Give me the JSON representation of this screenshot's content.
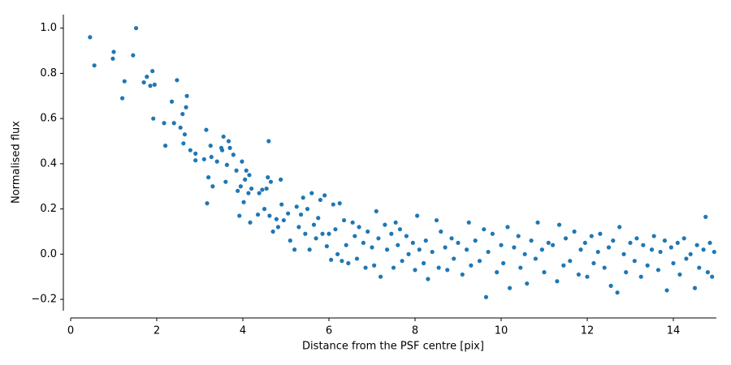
{
  "chart_data": {
    "type": "scatter",
    "xlabel": "Distance from the PSF centre [pix]",
    "ylabel": "Normalised flux",
    "xlim": [
      0,
      15
    ],
    "ylim": [
      -0.25,
      1.06
    ],
    "xticks": [
      0,
      2,
      4,
      6,
      8,
      10,
      12,
      14
    ],
    "yticks": [
      {
        "value": -0.2,
        "label": "−0.2"
      },
      {
        "value": 0,
        "label": "0.0"
      },
      0.2,
      0.4,
      0.6,
      0.8,
      {
        "value": 1,
        "label": "1.0"
      }
    ],
    "color": "#1f77b4",
    "x": [
      0.45,
      0.55,
      0.98,
      1.0,
      1.2,
      1.25,
      1.45,
      1.52,
      1.7,
      1.77,
      1.85,
      1.9,
      1.92,
      1.95,
      2.17,
      2.2,
      2.35,
      2.4,
      2.47,
      2.55,
      2.6,
      2.62,
      2.65,
      2.68,
      2.7,
      2.78,
      2.9,
      2.9,
      3.1,
      3.15,
      3.17,
      3.2,
      3.25,
      3.27,
      3.3,
      3.4,
      3.5,
      3.52,
      3.55,
      3.6,
      3.63,
      3.67,
      3.7,
      3.78,
      3.85,
      3.88,
      3.92,
      3.95,
      3.98,
      4.02,
      4.05,
      4.08,
      4.13,
      4.15,
      4.17,
      4.2,
      4.35,
      4.38,
      4.45,
      4.5,
      4.55,
      4.58,
      4.6,
      4.62,
      4.65,
      4.7,
      4.78,
      4.82,
      4.88,
      4.9,
      4.95,
      5.05,
      5.1,
      5.2,
      5.25,
      5.3,
      5.35,
      5.4,
      5.45,
      5.5,
      5.55,
      5.6,
      5.65,
      5.7,
      5.75,
      5.8,
      5.85,
      5.9,
      5.95,
      6.0,
      6.05,
      6.1,
      6.15,
      6.2,
      6.25,
      6.3,
      6.35,
      6.4,
      6.45,
      6.55,
      6.6,
      6.65,
      6.7,
      6.8,
      6.85,
      6.9,
      7.0,
      7.05,
      7.1,
      7.15,
      7.2,
      7.3,
      7.35,
      7.45,
      7.5,
      7.55,
      7.6,
      7.65,
      7.7,
      7.8,
      7.85,
      7.95,
      8.0,
      8.05,
      8.1,
      8.2,
      8.25,
      8.3,
      8.4,
      8.5,
      8.55,
      8.6,
      8.7,
      8.75,
      8.85,
      8.9,
      9.0,
      9.1,
      9.2,
      9.25,
      9.3,
      9.4,
      9.5,
      9.6,
      9.65,
      9.7,
      9.8,
      9.9,
      10.0,
      10.05,
      10.15,
      10.2,
      10.3,
      10.4,
      10.45,
      10.55,
      10.6,
      10.7,
      10.8,
      10.85,
      10.95,
      11.0,
      11.1,
      11.2,
      11.3,
      11.35,
      11.45,
      11.5,
      11.6,
      11.7,
      11.8,
      11.85,
      11.95,
      12.0,
      12.1,
      12.15,
      12.25,
      12.3,
      12.4,
      12.5,
      12.55,
      12.6,
      12.7,
      12.75,
      12.85,
      12.9,
      13.0,
      13.1,
      13.15,
      13.25,
      13.3,
      13.4,
      13.5,
      13.55,
      13.65,
      13.7,
      13.8,
      13.85,
      13.95,
      14.0,
      14.1,
      14.15,
      14.25,
      14.3,
      14.4,
      14.5,
      14.55,
      14.6,
      14.7,
      14.75,
      14.8,
      14.85,
      14.9,
      14.95
    ],
    "y": [
      0.96,
      0.835,
      0.865,
      0.895,
      0.69,
      0.765,
      0.88,
      1.0,
      0.76,
      0.785,
      0.745,
      0.81,
      0.6,
      0.75,
      0.58,
      0.48,
      0.675,
      0.58,
      0.77,
      0.56,
      0.62,
      0.49,
      0.53,
      0.65,
      0.7,
      0.46,
      0.415,
      0.445,
      0.42,
      0.55,
      0.225,
      0.34,
      0.48,
      0.43,
      0.3,
      0.41,
      0.47,
      0.46,
      0.52,
      0.32,
      0.395,
      0.5,
      0.47,
      0.44,
      0.37,
      0.28,
      0.17,
      0.3,
      0.41,
      0.23,
      0.33,
      0.37,
      0.27,
      0.35,
      0.14,
      0.29,
      0.175,
      0.27,
      0.285,
      0.2,
      0.29,
      0.34,
      0.5,
      0.17,
      0.32,
      0.1,
      0.155,
      0.12,
      0.33,
      0.22,
      0.15,
      0.18,
      0.06,
      0.02,
      0.21,
      0.12,
      0.175,
      0.25,
      0.09,
      0.2,
      0.02,
      0.27,
      0.13,
      0.07,
      0.16,
      0.24,
      0.09,
      0.26,
      0.035,
      0.09,
      -0.025,
      0.22,
      0.11,
      0.0,
      0.225,
      -0.03,
      0.15,
      0.04,
      -0.04,
      0.14,
      0.08,
      -0.02,
      0.12,
      0.05,
      -0.06,
      0.1,
      0.03,
      -0.05,
      0.19,
      0.07,
      -0.1,
      0.13,
      0.02,
      0.09,
      -0.06,
      0.14,
      0.04,
      0.11,
      -0.03,
      0.08,
      0.0,
      0.05,
      -0.07,
      0.17,
      0.02,
      -0.04,
      0.06,
      -0.11,
      0.01,
      0.15,
      -0.06,
      0.1,
      0.03,
      -0.07,
      0.07,
      -0.02,
      0.05,
      -0.09,
      0.02,
      0.14,
      -0.05,
      0.06,
      -0.03,
      0.11,
      -0.19,
      0.01,
      0.09,
      -0.08,
      0.04,
      -0.04,
      0.12,
      -0.15,
      0.03,
      0.08,
      -0.06,
      0.0,
      -0.13,
      0.06,
      -0.02,
      0.14,
      0.02,
      -0.08,
      0.05,
      0.04,
      -0.12,
      0.13,
      -0.05,
      0.07,
      -0.03,
      0.1,
      -0.09,
      0.02,
      0.05,
      -0.1,
      0.08,
      -0.04,
      0.01,
      0.09,
      -0.06,
      0.03,
      -0.14,
      0.06,
      -0.17,
      0.12,
      0.0,
      -0.08,
      0.05,
      -0.03,
      0.07,
      -0.1,
      0.04,
      -0.05,
      0.02,
      0.08,
      -0.07,
      0.01,
      0.06,
      -0.16,
      0.03,
      -0.04,
      0.05,
      -0.09,
      0.07,
      -0.02,
      0.0,
      -0.15,
      0.04,
      -0.06,
      0.02,
      0.165,
      -0.08,
      0.05,
      -0.1,
      0.01
    ]
  }
}
